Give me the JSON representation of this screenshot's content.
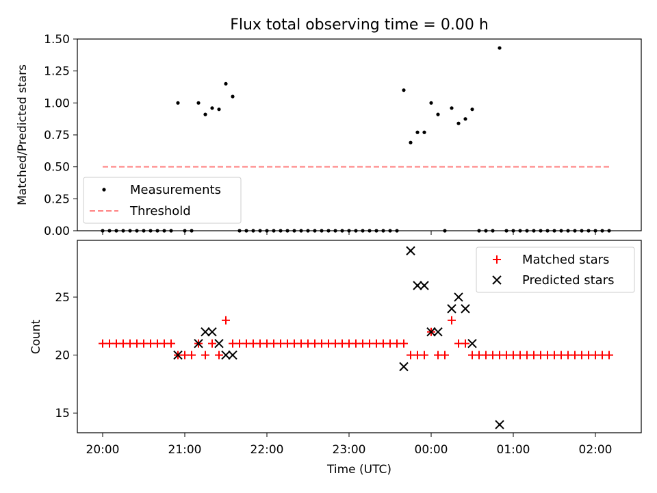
{
  "chart_data": [
    {
      "type": "scatter",
      "title": "Flux total observing time = 0.00 h",
      "ylabel": "Matched/Predicted stars",
      "xlabel": "",
      "ylim": [
        0,
        1.5
      ],
      "yticks": [
        "0.00",
        "0.25",
        "0.50",
        "0.75",
        "1.00",
        "1.25",
        "1.50"
      ],
      "legend_position": "lower-left",
      "grid": false,
      "series": [
        {
          "name": "Measurements",
          "color": "#000000",
          "marker": "dot",
          "points": [
            [
              "20:00",
              0
            ],
            [
              "20:05",
              0
            ],
            [
              "20:10",
              0
            ],
            [
              "20:15",
              0
            ],
            [
              "20:20",
              0
            ],
            [
              "20:25",
              0
            ],
            [
              "20:30",
              0
            ],
            [
              "20:35",
              0
            ],
            [
              "20:40",
              0
            ],
            [
              "20:45",
              0
            ],
            [
              "20:50",
              0
            ],
            [
              "20:55",
              1.0
            ],
            [
              "21:00",
              0
            ],
            [
              "21:05",
              0
            ],
            [
              "21:10",
              1.0
            ],
            [
              "21:15",
              0.91
            ],
            [
              "21:20",
              0.96
            ],
            [
              "21:25",
              0.95
            ],
            [
              "21:30",
              1.15
            ],
            [
              "21:35",
              1.05
            ],
            [
              "21:40",
              0
            ],
            [
              "21:45",
              0
            ],
            [
              "21:50",
              0
            ],
            [
              "21:55",
              0
            ],
            [
              "22:00",
              0
            ],
            [
              "22:05",
              0
            ],
            [
              "22:10",
              0
            ],
            [
              "22:15",
              0
            ],
            [
              "22:20",
              0
            ],
            [
              "22:25",
              0
            ],
            [
              "22:30",
              0
            ],
            [
              "22:35",
              0
            ],
            [
              "22:40",
              0
            ],
            [
              "22:45",
              0
            ],
            [
              "22:50",
              0
            ],
            [
              "22:55",
              0
            ],
            [
              "23:00",
              0
            ],
            [
              "23:05",
              0
            ],
            [
              "23:10",
              0
            ],
            [
              "23:15",
              0
            ],
            [
              "23:20",
              0
            ],
            [
              "23:25",
              0
            ],
            [
              "23:30",
              0
            ],
            [
              "23:35",
              0
            ],
            [
              "23:40",
              1.1
            ],
            [
              "23:45",
              0.69
            ],
            [
              "23:50",
              0.77
            ],
            [
              "23:55",
              0.77
            ],
            [
              "00:00",
              1.0
            ],
            [
              "00:05",
              0.91
            ],
            [
              "00:10",
              0
            ],
            [
              "00:15",
              0.96
            ],
            [
              "00:20",
              0.84
            ],
            [
              "00:25",
              0.875
            ],
            [
              "00:30",
              0.95
            ],
            [
              "00:35",
              0
            ],
            [
              "00:40",
              0
            ],
            [
              "00:45",
              0
            ],
            [
              "00:50",
              1.43
            ],
            [
              "00:55",
              0
            ],
            [
              "01:00",
              0
            ],
            [
              "01:05",
              0
            ],
            [
              "01:10",
              0
            ],
            [
              "01:15",
              0
            ],
            [
              "01:20",
              0
            ],
            [
              "01:25",
              0
            ],
            [
              "01:30",
              0
            ],
            [
              "01:35",
              0
            ],
            [
              "01:40",
              0
            ],
            [
              "01:45",
              0
            ],
            [
              "01:50",
              0
            ],
            [
              "01:55",
              0
            ],
            [
              "02:00",
              0
            ],
            [
              "02:05",
              0
            ],
            [
              "02:10",
              0
            ]
          ]
        },
        {
          "name": "Threshold",
          "color": "#ff8080",
          "marker": "dashed-line",
          "points": [
            [
              "20:00",
              0.5
            ],
            [
              "02:10",
              0.5
            ]
          ]
        }
      ]
    },
    {
      "type": "scatter",
      "title": "",
      "ylabel": "Count",
      "xlabel": "Time (UTC)",
      "ylim": [
        13.3,
        29.9
      ],
      "yticks": [
        "15",
        "20",
        "25"
      ],
      "xticks": [
        "20:00",
        "21:00",
        "22:00",
        "23:00",
        "00:00",
        "01:00",
        "02:00"
      ],
      "legend_position": "upper-right",
      "grid": false,
      "series": [
        {
          "name": "Matched stars",
          "color": "#ff0000",
          "marker": "plus",
          "points": [
            [
              "20:00",
              21
            ],
            [
              "20:05",
              21
            ],
            [
              "20:10",
              21
            ],
            [
              "20:15",
              21
            ],
            [
              "20:20",
              21
            ],
            [
              "20:25",
              21
            ],
            [
              "20:30",
              21
            ],
            [
              "20:35",
              21
            ],
            [
              "20:40",
              21
            ],
            [
              "20:45",
              21
            ],
            [
              "20:50",
              21
            ],
            [
              "20:55",
              20
            ],
            [
              "21:00",
              20
            ],
            [
              "21:05",
              20
            ],
            [
              "21:10",
              21
            ],
            [
              "21:15",
              20
            ],
            [
              "21:20",
              21
            ],
            [
              "21:25",
              20
            ],
            [
              "21:30",
              23
            ],
            [
              "21:35",
              21
            ],
            [
              "21:40",
              21
            ],
            [
              "21:45",
              21
            ],
            [
              "21:50",
              21
            ],
            [
              "21:55",
              21
            ],
            [
              "22:00",
              21
            ],
            [
              "22:05",
              21
            ],
            [
              "22:10",
              21
            ],
            [
              "22:15",
              21
            ],
            [
              "22:20",
              21
            ],
            [
              "22:25",
              21
            ],
            [
              "22:30",
              21
            ],
            [
              "22:35",
              21
            ],
            [
              "22:40",
              21
            ],
            [
              "22:45",
              21
            ],
            [
              "22:50",
              21
            ],
            [
              "22:55",
              21
            ],
            [
              "23:00",
              21
            ],
            [
              "23:05",
              21
            ],
            [
              "23:10",
              21
            ],
            [
              "23:15",
              21
            ],
            [
              "23:20",
              21
            ],
            [
              "23:25",
              21
            ],
            [
              "23:30",
              21
            ],
            [
              "23:35",
              21
            ],
            [
              "23:40",
              21
            ],
            [
              "23:45",
              20
            ],
            [
              "23:50",
              20
            ],
            [
              "23:55",
              20
            ],
            [
              "00:00",
              22
            ],
            [
              "00:05",
              20
            ],
            [
              "00:10",
              20
            ],
            [
              "00:15",
              23
            ],
            [
              "00:20",
              21
            ],
            [
              "00:25",
              21
            ],
            [
              "00:30",
              20
            ],
            [
              "00:35",
              20
            ],
            [
              "00:40",
              20
            ],
            [
              "00:45",
              20
            ],
            [
              "00:50",
              20
            ],
            [
              "00:55",
              20
            ],
            [
              "01:00",
              20
            ],
            [
              "01:05",
              20
            ],
            [
              "01:10",
              20
            ],
            [
              "01:15",
              20
            ],
            [
              "01:20",
              20
            ],
            [
              "01:25",
              20
            ],
            [
              "01:30",
              20
            ],
            [
              "01:35",
              20
            ],
            [
              "01:40",
              20
            ],
            [
              "01:45",
              20
            ],
            [
              "01:50",
              20
            ],
            [
              "01:55",
              20
            ],
            [
              "02:00",
              20
            ],
            [
              "02:05",
              20
            ],
            [
              "02:10",
              20
            ]
          ]
        },
        {
          "name": "Predicted stars",
          "color": "#000000",
          "marker": "cross",
          "points": [
            [
              "20:55",
              20
            ],
            [
              "21:10",
              21
            ],
            [
              "21:15",
              22
            ],
            [
              "21:20",
              22
            ],
            [
              "21:25",
              21
            ],
            [
              "21:30",
              20
            ],
            [
              "21:35",
              20
            ],
            [
              "23:40",
              19
            ],
            [
              "23:45",
              29
            ],
            [
              "23:50",
              26
            ],
            [
              "23:55",
              26
            ],
            [
              "00:00",
              22
            ],
            [
              "00:05",
              22
            ],
            [
              "00:15",
              24
            ],
            [
              "00:20",
              25
            ],
            [
              "00:25",
              24
            ],
            [
              "00:30",
              21
            ],
            [
              "00:50",
              14
            ]
          ]
        }
      ]
    }
  ]
}
